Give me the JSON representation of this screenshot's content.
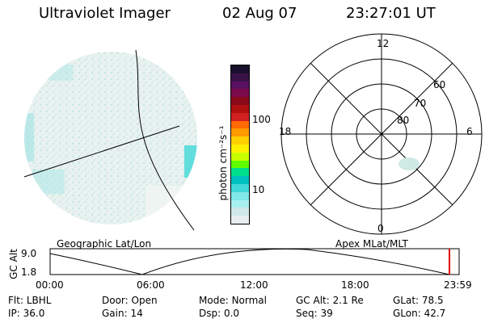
{
  "header": {
    "instrument": "Ultraviolet Imager",
    "date": "02 Aug 07",
    "time": "23:27:01 UT"
  },
  "colorbar": {
    "label": "photon cm⁻²s⁻¹",
    "ticks": [
      "100",
      "10"
    ],
    "colors": [
      "#1a0f2e",
      "#3a1247",
      "#5a1060",
      "#7a0a4a",
      "#8a0a1a",
      "#b01010",
      "#d02020",
      "#ff6a00",
      "#ff9a00",
      "#ffd000",
      "#fff000",
      "#c8ff00",
      "#60ff00",
      "#00e08a",
      "#00c0c0",
      "#40d8d8",
      "#80e8e8",
      "#a8f0f0",
      "#cfe8e8",
      "#e8eeee"
    ]
  },
  "polar": {
    "mlt_labels": {
      "top": "12",
      "left": "18",
      "right": "6",
      "bottom": "0"
    },
    "lat_labels": [
      "60",
      "70",
      "80"
    ]
  },
  "timeline": {
    "ylabel": "GC Alt",
    "yticks": [
      "9.0",
      "1.8"
    ],
    "left_caption": "Geographic Lat/Lon",
    "right_caption": "Apex MLat/MLT",
    "xticks": [
      "00:00",
      "06:00",
      "12:00",
      "18:00",
      "23:59"
    ]
  },
  "info": {
    "row1": [
      {
        "label": "Flt:",
        "value": "LBHL"
      },
      {
        "label": "Door:",
        "value": "Open"
      },
      {
        "label": "Mode:",
        "value": "Normal"
      },
      {
        "label": "GC Alt:",
        "value": "2.1 Re"
      },
      {
        "label": "GLat:",
        "value": "78.5"
      }
    ],
    "row2": [
      {
        "label": "IP:",
        "value": "36.0"
      },
      {
        "label": "Gain:",
        "value": "14"
      },
      {
        "label": "Dsp:",
        "value": "0.0"
      },
      {
        "label": "Seq:",
        "value": "39"
      },
      {
        "label": "GLon:",
        "value": "42.7"
      }
    ]
  }
}
